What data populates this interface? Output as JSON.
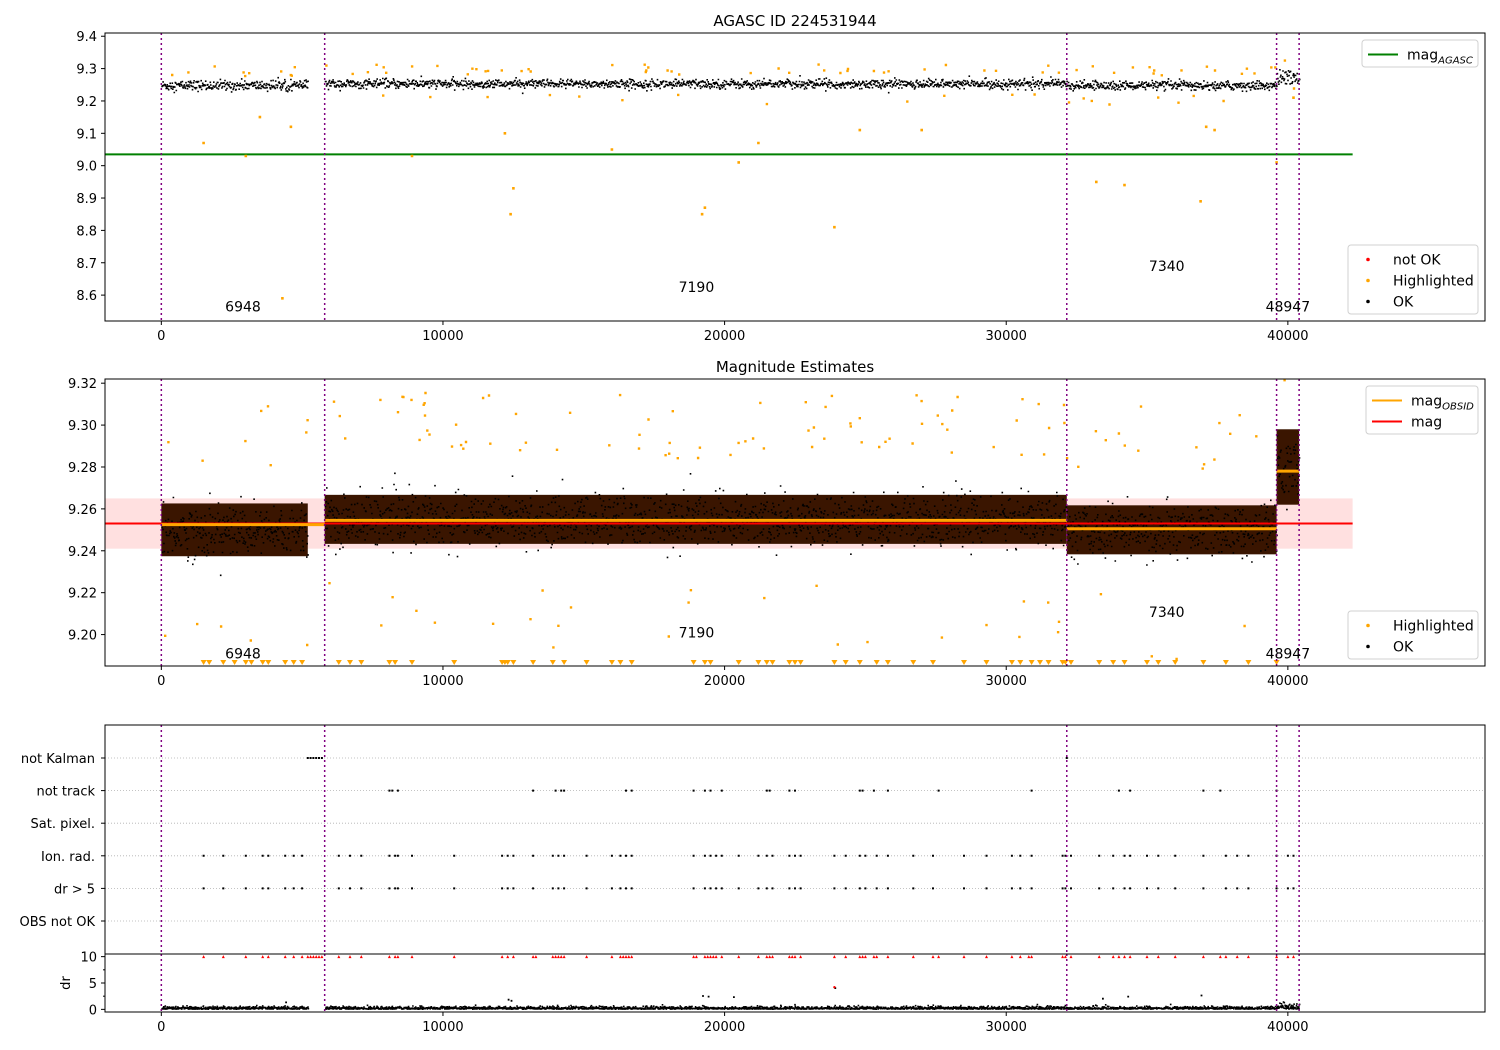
{
  "chart_data": [
    {
      "type": "scatter",
      "title": "AGASC ID 224531944",
      "xlabel": "",
      "ylabel": "",
      "xlim": [
        -2000,
        47000
      ],
      "ylim": [
        8.52,
        9.41
      ],
      "xticks": [
        0,
        10000,
        20000,
        30000,
        40000
      ],
      "yticks": [
        8.6,
        8.7,
        8.8,
        8.9,
        9.0,
        9.1,
        9.2,
        9.3,
        9.4
      ],
      "ytick_labels": [
        "8.6",
        "8.7",
        "8.8",
        "8.9",
        "9.0",
        "9.1",
        "9.2",
        "9.3",
        "9.4"
      ],
      "obsid_boundaries": [
        0,
        5800,
        32150,
        39600,
        40400
      ],
      "obsid_labels": [
        {
          "text": "6948",
          "x": 2900,
          "y": 8.55
        },
        {
          "text": "7190",
          "x": 19000,
          "y": 8.61
        },
        {
          "text": "7340",
          "x": 35700,
          "y": 8.675
        },
        {
          "text": "48947",
          "x": 40000,
          "y": 8.55
        }
      ],
      "segments": [
        {
          "x0": 0,
          "x1": 5200,
          "center": 9.25,
          "spread": 0.018
        },
        {
          "x0": 5800,
          "x1": 32150,
          "center": 9.255,
          "spread": 0.016
        },
        {
          "x0": 32150,
          "x1": 39600,
          "center": 9.25,
          "spread": 0.016
        },
        {
          "x0": 39600,
          "x1": 40400,
          "center": 9.275,
          "spread": 0.025
        }
      ],
      "series": [
        {
          "name": "mag_AGASC",
          "type": "line",
          "color": "#008000",
          "x": [
            -2000,
            42300
          ],
          "y": [
            9.035,
            9.035
          ]
        },
        {
          "name": "not OK",
          "type": "scatter",
          "color": "#ff0000"
        },
        {
          "name": "Highlighted",
          "type": "scatter",
          "color": "#ffa500",
          "outliers": [
            [
              1500,
              9.07
            ],
            [
              3000,
              9.03
            ],
            [
              3500,
              9.15
            ],
            [
              4300,
              8.59
            ],
            [
              4600,
              9.12
            ],
            [
              8900,
              9.03
            ],
            [
              12200,
              9.1
            ],
            [
              12400,
              8.85
            ],
            [
              12500,
              8.93
            ],
            [
              16000,
              9.05
            ],
            [
              19200,
              8.85
            ],
            [
              19300,
              8.87
            ],
            [
              20500,
              9.01
            ],
            [
              21200,
              9.07
            ],
            [
              23900,
              8.81
            ],
            [
              24800,
              9.11
            ],
            [
              27000,
              9.11
            ],
            [
              33200,
              8.95
            ],
            [
              34200,
              8.94
            ],
            [
              36900,
              8.89
            ],
            [
              37100,
              9.12
            ],
            [
              37400,
              9.11
            ],
            [
              39600,
              9.01
            ],
            [
              40200,
              9.21
            ]
          ]
        },
        {
          "name": "OK",
          "type": "scatter",
          "color": "#000000"
        }
      ],
      "legends": [
        {
          "position": "upper-right",
          "entries": [
            {
              "label": "mag",
              "sub": "AGASC",
              "color": "#008000",
              "kind": "line"
            }
          ]
        },
        {
          "position": "lower-right",
          "entries": [
            {
              "label": "not OK",
              "color": "#ff0000",
              "kind": "dot"
            },
            {
              "label": "Highlighted",
              "color": "#ffa500",
              "kind": "dot"
            },
            {
              "label": "OK",
              "color": "#000000",
              "kind": "dot"
            }
          ]
        }
      ]
    },
    {
      "type": "scatter",
      "title": "Magnitude Estimates",
      "xlabel": "",
      "ylabel": "",
      "xlim": [
        -2000,
        47000
      ],
      "ylim": [
        9.185,
        9.322
      ],
      "xticks": [
        0,
        10000,
        20000,
        30000,
        40000
      ],
      "yticks": [
        9.2,
        9.22,
        9.24,
        9.26,
        9.28,
        9.3,
        9.32
      ],
      "ytick_labels": [
        "9.20",
        "9.22",
        "9.24",
        "9.26",
        "9.28",
        "9.30",
        "9.32"
      ],
      "obsid_boundaries": [
        0,
        5800,
        32150,
        39600,
        40400
      ],
      "obsid_labels": [
        {
          "text": "6948",
          "x": 2900,
          "y": 9.1885
        },
        {
          "text": "7190",
          "x": 19000,
          "y": 9.1985
        },
        {
          "text": "7340",
          "x": 35700,
          "y": 9.2085
        },
        {
          "text": "48947",
          "x": 40000,
          "y": 9.1885
        }
      ],
      "mag": 9.253,
      "mag_band": [
        9.241,
        9.265
      ],
      "mag_obsid": [
        {
          "x0": 0,
          "x1": 5800,
          "y": 9.2525
        },
        {
          "x0": 5800,
          "x1": 32150,
          "y": 9.2545
        },
        {
          "x0": 32150,
          "x1": 39600,
          "y": 9.2505
        },
        {
          "x0": 39600,
          "x1": 40400,
          "y": 9.278
        }
      ],
      "segments": [
        {
          "x0": 0,
          "x1": 5200,
          "center": 9.25,
          "spread": 0.014
        },
        {
          "x0": 5800,
          "x1": 32150,
          "center": 9.255,
          "spread": 0.013
        },
        {
          "x0": 32150,
          "x1": 39600,
          "center": 9.25,
          "spread": 0.013
        },
        {
          "x0": 39600,
          "x1": 40400,
          "center": 9.28,
          "spread": 0.02
        }
      ],
      "series": [
        {
          "name": "mag_OBSID",
          "type": "step",
          "color": "#ffa500"
        },
        {
          "name": "mag",
          "type": "line",
          "color": "#ff0000"
        },
        {
          "name": "Highlighted",
          "type": "scatter",
          "color": "#ffa500"
        },
        {
          "name": "OK",
          "type": "scatter",
          "color": "#000000"
        }
      ],
      "legends": [
        {
          "position": "upper-right",
          "entries": [
            {
              "label": "mag",
              "sub": "OBSID",
              "color": "#ffa500",
              "kind": "line"
            },
            {
              "label": "mag",
              "sub": "",
              "color": "#ff0000",
              "kind": "line"
            }
          ]
        },
        {
          "position": "lower-right",
          "entries": [
            {
              "label": "Highlighted",
              "color": "#ffa500",
              "kind": "dot"
            },
            {
              "label": "OK",
              "color": "#000000",
              "kind": "dot"
            }
          ]
        }
      ]
    },
    {
      "type": "scatter",
      "title": "",
      "xlim": [
        -2000,
        47000
      ],
      "ylim": [
        -0.5,
        6.5
      ],
      "xticks": [
        0,
        10000,
        20000,
        30000,
        40000
      ],
      "ytick_labels": [
        "not Kalman",
        "not track",
        "Sat. pixel.",
        "Ion. rad.",
        "dr > 5",
        "OBS not OK"
      ],
      "obsid_boundaries": [
        0,
        5800,
        32150,
        39600,
        40400
      ],
      "flags": [
        {
          "label": "not Kalman",
          "x": [
            5200,
            5300,
            5400,
            5500,
            5600,
            5700,
            32150
          ]
        },
        {
          "label": "not track",
          "x": [
            8100,
            8200,
            8400,
            13200,
            14000,
            14200,
            14300,
            16500,
            16700,
            18900,
            19300,
            19500,
            19900,
            21500,
            21600,
            22300,
            22500,
            24800,
            24900,
            25300,
            25800,
            27600,
            30900,
            34000,
            34400,
            37000,
            37600,
            39600
          ]
        },
        {
          "label": "Sat. pixel.",
          "x": []
        },
        {
          "label": "Ion. rad.",
          "x": [
            1500,
            2200,
            3000,
            3600,
            3800,
            4400,
            4700,
            5000,
            6300,
            6700,
            7100,
            8100,
            8300,
            8400,
            8900,
            10400,
            12100,
            12300,
            12500,
            13200,
            13900,
            14100,
            14300,
            15100,
            16000,
            16300,
            16500,
            16700,
            18900,
            19300,
            19500,
            19700,
            19900,
            20500,
            21200,
            21500,
            21700,
            22300,
            22500,
            22700,
            23900,
            24300,
            24800,
            25000,
            25400,
            25800,
            26700,
            27400,
            28500,
            29300,
            30200,
            30500,
            30900,
            32000,
            32100,
            32300,
            33300,
            33800,
            34200,
            34400,
            35000,
            35400,
            36000,
            37000,
            37800,
            38200,
            38600,
            39600,
            40000,
            40200
          ]
        },
        {
          "label": "dr > 5",
          "x": [
            1500,
            2200,
            3000,
            3600,
            3800,
            4400,
            4700,
            5000,
            6300,
            6700,
            7100,
            8100,
            8300,
            8400,
            8900,
            10400,
            12100,
            12300,
            12500,
            13200,
            13900,
            14100,
            14300,
            15100,
            16000,
            16300,
            16500,
            16700,
            18900,
            19300,
            19500,
            19700,
            19900,
            20500,
            21200,
            21500,
            21700,
            22300,
            22500,
            22700,
            23900,
            24300,
            24800,
            25000,
            25400,
            25800,
            26700,
            27400,
            28500,
            29300,
            30200,
            30500,
            30900,
            32000,
            32100,
            32300,
            33300,
            33800,
            34200,
            34400,
            35000,
            35400,
            36000,
            37000,
            37800,
            38200,
            38600,
            39600,
            40000,
            40200
          ]
        },
        {
          "label": "OBS not OK",
          "x": []
        }
      ]
    },
    {
      "type": "scatter",
      "title": "",
      "xlabel": "",
      "ylabel": "dr",
      "xlim": [
        -2000,
        47000
      ],
      "ylim": [
        -0.5,
        10.5
      ],
      "xticks": [
        0,
        10000,
        20000,
        30000,
        40000
      ],
      "yticks": [
        0,
        5,
        10
      ],
      "ytick_labels": [
        "0",
        "5",
        "10"
      ],
      "obsid_boundaries": [
        0,
        5800,
        32150,
        39600,
        40400
      ],
      "notok_marker_y": 10,
      "notok_x": [
        1500,
        2200,
        3000,
        3600,
        3800,
        4400,
        4700,
        5000,
        5200,
        5300,
        5400,
        5500,
        5600,
        5700,
        6300,
        6700,
        7100,
        8100,
        8300,
        8400,
        8900,
        10400,
        12100,
        12300,
        12500,
        13200,
        13300,
        13900,
        14000,
        14100,
        14200,
        14300,
        15100,
        16000,
        16300,
        16400,
        16500,
        16600,
        16700,
        18900,
        19000,
        19300,
        19400,
        19500,
        19600,
        19700,
        19900,
        20500,
        21200,
        21500,
        21600,
        21700,
        22300,
        22400,
        22500,
        22700,
        23900,
        24300,
        24800,
        24900,
        25000,
        25300,
        25400,
        25800,
        26700,
        27400,
        27600,
        28500,
        29300,
        30200,
        30500,
        30800,
        30900,
        32000,
        32100,
        32300,
        33300,
        33800,
        34000,
        34200,
        34400,
        35000,
        35400,
        36000,
        37000,
        37600,
        37800,
        38200,
        38600,
        39600,
        40000,
        40200
      ],
      "dr_spikes": [
        [
          4400,
          1.5
        ],
        [
          12300,
          2
        ],
        [
          12400,
          1.8
        ],
        [
          19200,
          2.7
        ],
        [
          19400,
          2.6
        ],
        [
          20300,
          2.5
        ],
        [
          23900,
          4.2
        ],
        [
          33400,
          2.2
        ],
        [
          34300,
          2.6
        ],
        [
          36900,
          2.8
        ]
      ],
      "series": [
        {
          "name": "dr",
          "type": "scatter",
          "color": "#000000"
        },
        {
          "name": "not OK",
          "type": "scatter",
          "color": "#ff0000"
        }
      ]
    }
  ]
}
